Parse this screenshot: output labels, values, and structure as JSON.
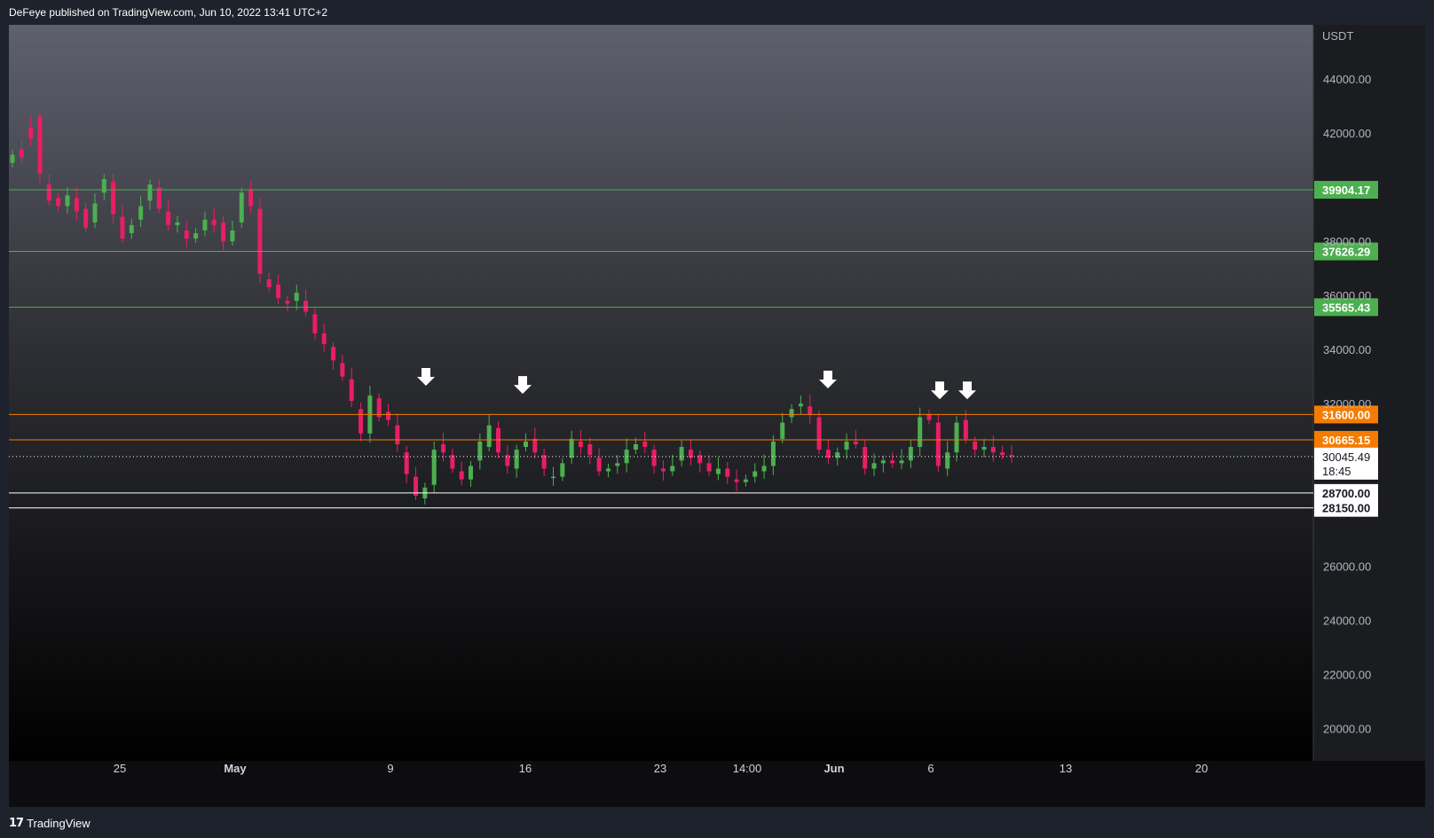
{
  "header": {
    "published": "DeFeye published on TradingView.com, Jun 10, 2022 13:41 UTC+2"
  },
  "footer": {
    "brand": "TradingView",
    "brand_icon": "tradingview-logo-icon"
  },
  "chart_data": {
    "type": "candlestick",
    "currency_label": "USDT",
    "ylim": [
      18800,
      46000
    ],
    "y_ticks": [
      "44000.00",
      "42000.00",
      "38000.00",
      "36000.00",
      "34000.00",
      "32000.00",
      "26000.00",
      "24000.00",
      "22000.00",
      "20000.00"
    ],
    "x_labels": [
      {
        "text": "25",
        "bold": false
      },
      {
        "text": "May",
        "bold": true
      },
      {
        "text": "9",
        "bold": false
      },
      {
        "text": "16",
        "bold": false
      },
      {
        "text": "23",
        "bold": false
      },
      {
        "text": "14:00",
        "bold": false
      },
      {
        "text": "Jun",
        "bold": true
      },
      {
        "text": "6",
        "bold": false
      },
      {
        "text": "13",
        "bold": false
      },
      {
        "text": "20",
        "bold": false
      }
    ],
    "horizontal_levels": [
      {
        "value": 39904.17,
        "label": "39904.17",
        "color": "#4caf50"
      },
      {
        "value": 37626.29,
        "label": "37626.29",
        "color": "#4caf50"
      },
      {
        "value": 35565.43,
        "label": "35565.43",
        "color": "#4caf50"
      },
      {
        "value": 31600.0,
        "label": "31600.00",
        "color": "#f57c00"
      },
      {
        "value": 30665.15,
        "label": "30665.15",
        "color": "#f57c00"
      },
      {
        "value": 28700.0,
        "label": "28700.00",
        "color": "#ffffff"
      },
      {
        "value": 28150.0,
        "label": "28150.00",
        "color": "#ffffff"
      }
    ],
    "last_price": {
      "value": 30045.49,
      "label": "30045.49",
      "countdown": "18:45"
    },
    "resistance_arrows": [
      32400,
      32100,
      32300,
      31900,
      31900
    ],
    "price_path": [
      [
        40900,
        41200
      ],
      [
        41400,
        41100
      ],
      [
        42200,
        41800
      ],
      [
        42600,
        40500
      ],
      [
        40100,
        39500
      ],
      [
        39600,
        39300
      ],
      [
        39300,
        39700
      ],
      [
        39600,
        39100
      ],
      [
        39200,
        38500
      ],
      [
        38700,
        39400
      ],
      [
        39800,
        40300
      ],
      [
        40200,
        39000
      ],
      [
        38900,
        38100
      ],
      [
        38300,
        38600
      ],
      [
        38800,
        39300
      ],
      [
        39500,
        40100
      ],
      [
        40000,
        39200
      ],
      [
        39100,
        38600
      ],
      [
        38600,
        38700
      ],
      [
        38400,
        38100
      ],
      [
        38100,
        38300
      ],
      [
        38400,
        38800
      ],
      [
        38800,
        38600
      ],
      [
        38700,
        38000
      ],
      [
        38000,
        38400
      ],
      [
        38700,
        39800
      ],
      [
        39900,
        39300
      ],
      [
        39200,
        36800
      ],
      [
        36600,
        36300
      ],
      [
        36400,
        35900
      ],
      [
        35800,
        35700
      ],
      [
        35800,
        36100
      ],
      [
        35800,
        35400
      ],
      [
        35300,
        34600
      ],
      [
        34600,
        34200
      ],
      [
        34100,
        33600
      ],
      [
        33500,
        33000
      ],
      [
        32900,
        32100
      ],
      [
        31800,
        30900
      ],
      [
        30900,
        32300
      ],
      [
        32200,
        31500
      ],
      [
        31700,
        31400
      ],
      [
        31200,
        30500
      ],
      [
        30200,
        29400
      ],
      [
        29300,
        28600
      ],
      [
        28500,
        28900
      ],
      [
        29000,
        30300
      ],
      [
        30500,
        30200
      ],
      [
        30100,
        29600
      ],
      [
        29500,
        29200
      ],
      [
        29200,
        29700
      ],
      [
        29900,
        30600
      ],
      [
        30400,
        31200
      ],
      [
        31100,
        30200
      ],
      [
        30100,
        29700
      ],
      [
        29600,
        30300
      ],
      [
        30400,
        30600
      ],
      [
        30700,
        30200
      ],
      [
        30100,
        29600
      ],
      [
        29300,
        29300
      ],
      [
        29300,
        29800
      ],
      [
        30000,
        30700
      ],
      [
        30600,
        30400
      ],
      [
        30500,
        30100
      ],
      [
        30000,
        29500
      ],
      [
        29500,
        29600
      ],
      [
        29700,
        29800
      ],
      [
        29800,
        30300
      ],
      [
        30300,
        30500
      ],
      [
        30600,
        30400
      ],
      [
        30300,
        29700
      ],
      [
        29600,
        29500
      ],
      [
        29500,
        29700
      ],
      [
        29900,
        30400
      ],
      [
        30300,
        30000
      ],
      [
        30100,
        29800
      ],
      [
        29800,
        29500
      ],
      [
        29400,
        29600
      ],
      [
        29600,
        29300
      ],
      [
        29200,
        29100
      ],
      [
        29100,
        29200
      ],
      [
        29300,
        29500
      ],
      [
        29500,
        29700
      ],
      [
        29700,
        30600
      ],
      [
        30700,
        31300
      ],
      [
        31500,
        31800
      ],
      [
        31900,
        32000
      ],
      [
        31900,
        31600
      ],
      [
        31500,
        30300
      ],
      [
        30300,
        30000
      ],
      [
        30000,
        30200
      ],
      [
        30300,
        30600
      ],
      [
        30600,
        30500
      ],
      [
        30400,
        29600
      ],
      [
        29600,
        29800
      ],
      [
        29800,
        29900
      ],
      [
        29900,
        29800
      ],
      [
        29800,
        29900
      ],
      [
        29900,
        30400
      ],
      [
        30400,
        31500
      ],
      [
        31600,
        31400
      ],
      [
        31300,
        29700
      ],
      [
        29600,
        30200
      ],
      [
        30200,
        31300
      ],
      [
        31400,
        30700
      ],
      [
        30600,
        30300
      ],
      [
        30300,
        30400
      ],
      [
        30400,
        30200
      ],
      [
        30200,
        30100
      ],
      [
        30100,
        30045
      ]
    ]
  }
}
